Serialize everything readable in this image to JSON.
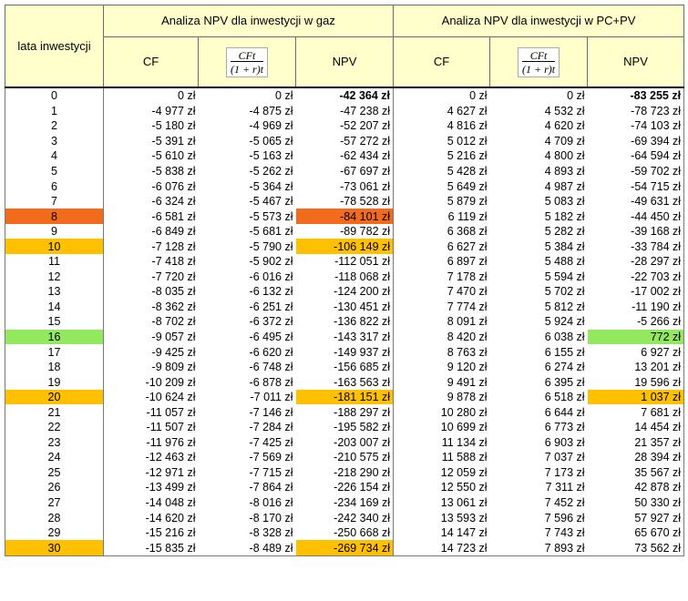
{
  "header": {
    "years_label": "lata inwestycji",
    "group_gas": "Analiza NPV dla inwestycji w gaz",
    "group_pv": "Analiza NPV dla inwestycji w PC+PV",
    "col_cf": "CF",
    "col_disc_num": "CFt",
    "col_disc_den": "(1 + r)t",
    "col_npv": "NPV"
  },
  "colors": {
    "header_bg": "#FFFFCC",
    "orange": "#F26B1D",
    "amber": "#FFC000",
    "green": "#92E85E"
  },
  "rows": [
    {
      "year": "0",
      "g_cf": "0 zł",
      "g_disc": "0 zł",
      "g_npv": "-42 364 zł",
      "p_cf": "0 zł",
      "p_disc": "0 zł",
      "p_npv": "-83 255 zł",
      "bold": true
    },
    {
      "year": "1",
      "g_cf": "-4 977 zł",
      "g_disc": "-4 875 zł",
      "g_npv": "-47 238 zł",
      "p_cf": "4 627 zł",
      "p_disc": "4 532 zł",
      "p_npv": "-78 723 zł"
    },
    {
      "year": "2",
      "g_cf": "-5 180 zł",
      "g_disc": "-4 969 zł",
      "g_npv": "-52 207 zł",
      "p_cf": "4 816 zł",
      "p_disc": "4 620 zł",
      "p_npv": "-74 103 zł"
    },
    {
      "year": "3",
      "g_cf": "-5 391 zł",
      "g_disc": "-5 065 zł",
      "g_npv": "-57 272 zł",
      "p_cf": "5 012 zł",
      "p_disc": "4 709 zł",
      "p_npv": "-69 394 zł"
    },
    {
      "year": "4",
      "g_cf": "-5 610 zł",
      "g_disc": "-5 163 zł",
      "g_npv": "-62 434 zł",
      "p_cf": "5 216 zł",
      "p_disc": "4 800 zł",
      "p_npv": "-64 594 zł"
    },
    {
      "year": "5",
      "g_cf": "-5 838 zł",
      "g_disc": "-5 262 zł",
      "g_npv": "-67 697 zł",
      "p_cf": "5 428 zł",
      "p_disc": "4 893 zł",
      "p_npv": "-59 702 zł"
    },
    {
      "year": "6",
      "g_cf": "-6 076 zł",
      "g_disc": "-5 364 zł",
      "g_npv": "-73 061 zł",
      "p_cf": "5 649 zł",
      "p_disc": "4 987 zł",
      "p_npv": "-54 715 zł"
    },
    {
      "year": "7",
      "g_cf": "-6 324 zł",
      "g_disc": "-5 467 zł",
      "g_npv": "-78 528 zł",
      "p_cf": "5 879 zł",
      "p_disc": "5 083 zł",
      "p_npv": "-49 631 zł"
    },
    {
      "year": "8",
      "g_cf": "-6 581 zł",
      "g_disc": "-5 573 zł",
      "g_npv": "-84 101 zł",
      "p_cf": "6 119 zł",
      "p_disc": "5 182 zł",
      "p_npv": "-44 450 zł",
      "hl_year": "orange",
      "hl_g": "orange"
    },
    {
      "year": "9",
      "g_cf": "-6 849 zł",
      "g_disc": "-5 681 zł",
      "g_npv": "-89 782 zł",
      "p_cf": "6 368 zł",
      "p_disc": "5 282 zł",
      "p_npv": "-39 168 zł"
    },
    {
      "year": "10",
      "g_cf": "-7 128 zł",
      "g_disc": "-5 790 zł",
      "g_npv": "-106 149 zł",
      "p_cf": "6 627 zł",
      "p_disc": "5 384 zł",
      "p_npv": "-33 784 zł",
      "hl_year": "amber",
      "hl_g": "amber"
    },
    {
      "year": "11",
      "g_cf": "-7 418 zł",
      "g_disc": "-5 902 zł",
      "g_npv": "-112 051 zł",
      "p_cf": "6 897 zł",
      "p_disc": "5 488 zł",
      "p_npv": "-28 297 zł"
    },
    {
      "year": "12",
      "g_cf": "-7 720 zł",
      "g_disc": "-6 016 zł",
      "g_npv": "-118 068 zł",
      "p_cf": "7 178 zł",
      "p_disc": "5 594 zł",
      "p_npv": "-22 703 zł"
    },
    {
      "year": "13",
      "g_cf": "-8 035 zł",
      "g_disc": "-6 132 zł",
      "g_npv": "-124 200 zł",
      "p_cf": "7 470 zł",
      "p_disc": "5 702 zł",
      "p_npv": "-17 002 zł"
    },
    {
      "year": "14",
      "g_cf": "-8 362 zł",
      "g_disc": "-6 251 zł",
      "g_npv": "-130 451 zł",
      "p_cf": "7 774 zł",
      "p_disc": "5 812 zł",
      "p_npv": "-11 190 zł"
    },
    {
      "year": "15",
      "g_cf": "-8 702 zł",
      "g_disc": "-6 372 zł",
      "g_npv": "-136 822 zł",
      "p_cf": "8 091 zł",
      "p_disc": "5 924 zł",
      "p_npv": "-5 266 zł"
    },
    {
      "year": "16",
      "g_cf": "-9 057 zł",
      "g_disc": "-6 495 zł",
      "g_npv": "-143 317 zł",
      "p_cf": "8 420 zł",
      "p_disc": "6 038 zł",
      "p_npv": "772 zł",
      "hl_year": "green",
      "hl_p": "green"
    },
    {
      "year": "17",
      "g_cf": "-9 425 zł",
      "g_disc": "-6 620 zł",
      "g_npv": "-149 937 zł",
      "p_cf": "8 763 zł",
      "p_disc": "6 155 zł",
      "p_npv": "6 927 zł"
    },
    {
      "year": "18",
      "g_cf": "-9 809 zł",
      "g_disc": "-6 748 zł",
      "g_npv": "-156 685 zł",
      "p_cf": "9 120 zł",
      "p_disc": "6 274 zł",
      "p_npv": "13 201 zł"
    },
    {
      "year": "19",
      "g_cf": "-10 209 zł",
      "g_disc": "-6 878 zł",
      "g_npv": "-163 563 zł",
      "p_cf": "9 491 zł",
      "p_disc": "6 395 zł",
      "p_npv": "19 596 zł"
    },
    {
      "year": "20",
      "g_cf": "-10 624 zł",
      "g_disc": "-7 011 zł",
      "g_npv": "-181 151 zł",
      "p_cf": "9 878 zł",
      "p_disc": "6 518 zł",
      "p_npv": "1 037 zł",
      "hl_year": "amber",
      "hl_g": "amber",
      "hl_p": "amber"
    },
    {
      "year": "21",
      "g_cf": "-11 057 zł",
      "g_disc": "-7 146 zł",
      "g_npv": "-188 297 zł",
      "p_cf": "10 280 zł",
      "p_disc": "6 644 zł",
      "p_npv": "7 681 zł"
    },
    {
      "year": "22",
      "g_cf": "-11 507 zł",
      "g_disc": "-7 284 zł",
      "g_npv": "-195 582 zł",
      "p_cf": "10 699 zł",
      "p_disc": "6 773 zł",
      "p_npv": "14 454 zł"
    },
    {
      "year": "23",
      "g_cf": "-11 976 zł",
      "g_disc": "-7 425 zł",
      "g_npv": "-203 007 zł",
      "p_cf": "11 134 zł",
      "p_disc": "6 903 zł",
      "p_npv": "21 357 zł"
    },
    {
      "year": "24",
      "g_cf": "-12 463 zł",
      "g_disc": "-7 569 zł",
      "g_npv": "-210 575 zł",
      "p_cf": "11 588 zł",
      "p_disc": "7 037 zł",
      "p_npv": "28 394 zł"
    },
    {
      "year": "25",
      "g_cf": "-12 971 zł",
      "g_disc": "-7 715 zł",
      "g_npv": "-218 290 zł",
      "p_cf": "12 059 zł",
      "p_disc": "7 173 zł",
      "p_npv": "35 567 zł"
    },
    {
      "year": "26",
      "g_cf": "-13 499 zł",
      "g_disc": "-7 864 zł",
      "g_npv": "-226 154 zł",
      "p_cf": "12 550 zł",
      "p_disc": "7 311 zł",
      "p_npv": "42 878 zł"
    },
    {
      "year": "27",
      "g_cf": "-14 048 zł",
      "g_disc": "-8 016 zł",
      "g_npv": "-234 169 zł",
      "p_cf": "13 061 zł",
      "p_disc": "7 452 zł",
      "p_npv": "50 330 zł"
    },
    {
      "year": "28",
      "g_cf": "-14 620 zł",
      "g_disc": "-8 170 zł",
      "g_npv": "-242 340 zł",
      "p_cf": "13 593 zł",
      "p_disc": "7 596 zł",
      "p_npv": "57 927 zł"
    },
    {
      "year": "29",
      "g_cf": "-15 216 zł",
      "g_disc": "-8 328 zł",
      "g_npv": "-250 668 zł",
      "p_cf": "14 147 zł",
      "p_disc": "7 743 zł",
      "p_npv": "65 670 zł"
    },
    {
      "year": "30",
      "g_cf": "-15 835 zł",
      "g_disc": "-8 489 zł",
      "g_npv": "-269 734 zł",
      "p_cf": "14 723 zł",
      "p_disc": "7 893 zł",
      "p_npv": "73 562 zł",
      "hl_year": "amber",
      "hl_g": "amber"
    }
  ]
}
